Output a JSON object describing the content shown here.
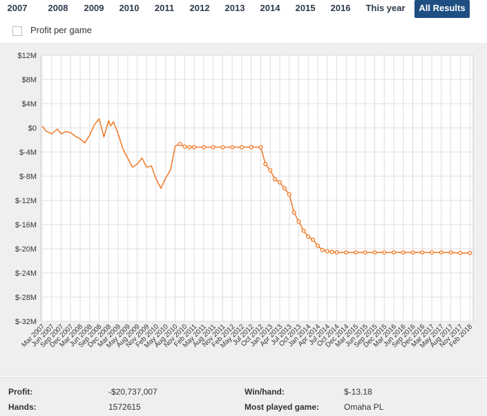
{
  "tabs": [
    {
      "label": "2007",
      "active": false
    },
    {
      "label": "2008",
      "active": false
    },
    {
      "label": "2009",
      "active": false
    },
    {
      "label": "2010",
      "active": false
    },
    {
      "label": "2011",
      "active": false
    },
    {
      "label": "2012",
      "active": false
    },
    {
      "label": "2013",
      "active": false
    },
    {
      "label": "2014",
      "active": false
    },
    {
      "label": "2015",
      "active": false
    },
    {
      "label": "2016",
      "active": false
    },
    {
      "label": "This year",
      "active": false
    },
    {
      "label": "All Results",
      "active": true
    }
  ],
  "options": {
    "profit_per_game_label": "Profit per game",
    "profit_per_game_checked": false
  },
  "colors": {
    "line": "#f07d2d",
    "tab_active": "#1f4f82",
    "background": "#efefef",
    "plot": "#ffffff"
  },
  "chart_data": {
    "type": "line",
    "title": "",
    "xlabel": "",
    "ylabel": "",
    "ylim": [
      -32,
      12
    ],
    "y_unit": "millions USD",
    "y_ticks": [
      "$12M",
      "$8M",
      "$4M",
      "$0",
      "$-4M",
      "$-8M",
      "$-12M",
      "$-16M",
      "$-20M",
      "$-24M",
      "$-28M",
      "$-32M"
    ],
    "x_ticks": [
      "Mar 2007",
      "Jun 2007",
      "Sep 2007",
      "Dec 2007",
      "Mar 2008",
      "Jun 2008",
      "Sep 2008",
      "Dec 2008",
      "Mar 2009",
      "May 2009",
      "Aug 2009",
      "Nov 2009",
      "Feb 2010",
      "May 2010",
      "Aug 2010",
      "Nov 2010",
      "Feb 2011",
      "May 2011",
      "Aug 2011",
      "Nov 2011",
      "Feb 2012",
      "May 2012",
      "Jul 2012",
      "Oct 2012",
      "Jan 2013",
      "Apr 2013",
      "Jul 2013",
      "Oct 2013",
      "Jan 2014",
      "Apr 2014",
      "Jul 2014",
      "Oct 2014",
      "Dec 2014",
      "Mar 2015",
      "Jun 2015",
      "Sep 2015",
      "Dec 2015",
      "Mar 2016",
      "Jun 2016",
      "Sep 2016",
      "Dec 2016",
      "Mar 2017",
      "May 2017",
      "Aug 2017",
      "Nov 2017",
      "Feb 2018"
    ],
    "grid": true,
    "legend": "none",
    "series": [
      {
        "x": [
          0,
          0.4,
          1,
          1.6,
          2,
          2.5,
          3,
          3.5,
          4,
          4.5,
          5,
          5.5,
          6,
          6.5,
          7,
          7.2,
          7.5,
          8,
          8.5,
          9,
          9.5,
          10,
          10.5,
          11,
          11.5,
          12,
          12.5,
          13,
          13.5,
          14,
          14.5,
          15,
          15.5,
          16,
          16.5,
          17,
          18,
          19,
          20,
          21,
          22,
          23,
          23.5,
          24,
          24.5,
          25,
          25.5,
          26,
          26.5,
          27,
          27.5,
          28,
          28.5,
          29,
          29.5,
          30,
          30.5,
          31,
          32,
          33,
          34,
          35,
          36,
          37,
          38,
          39,
          40,
          41,
          42,
          43,
          44,
          45
        ],
        "y": [
          0.3,
          -0.5,
          -1,
          -0.2,
          -1,
          -0.6,
          -0.8,
          -1.4,
          -1.8,
          -2.5,
          -1.2,
          0.5,
          1.5,
          -1.5,
          1.2,
          0.3,
          1,
          -1,
          -3.5,
          -5,
          -6.5,
          -6,
          -5,
          -6.5,
          -6.3,
          -8.5,
          -10,
          -8.3,
          -7,
          -3,
          -2.7,
          -3.1,
          -3.2,
          -3.2,
          -3.2,
          -3.2,
          -3.2,
          -3.2,
          -3.2,
          -3.2,
          -3.2,
          -3.2,
          -6,
          -7,
          -8.5,
          -9,
          -10,
          -11,
          -14,
          -15.5,
          -17,
          -18,
          -18.5,
          -19.5,
          -20.2,
          -20.4,
          -20.5,
          -20.6,
          -20.6,
          -20.6,
          -20.6,
          -20.6,
          -20.6,
          -20.6,
          -20.6,
          -20.6,
          -20.6,
          -20.6,
          -20.6,
          -20.6,
          -20.7,
          -20.7
        ]
      }
    ]
  },
  "footer": {
    "profit_label": "Profit:",
    "profit_value": "-$20,737,007",
    "winhand_label": "Win/hand:",
    "winhand_value": "$-13.18",
    "hands_label": "Hands:",
    "hands_value": "1572615",
    "game_label": "Most played game:",
    "game_value": "Omaha PL"
  }
}
